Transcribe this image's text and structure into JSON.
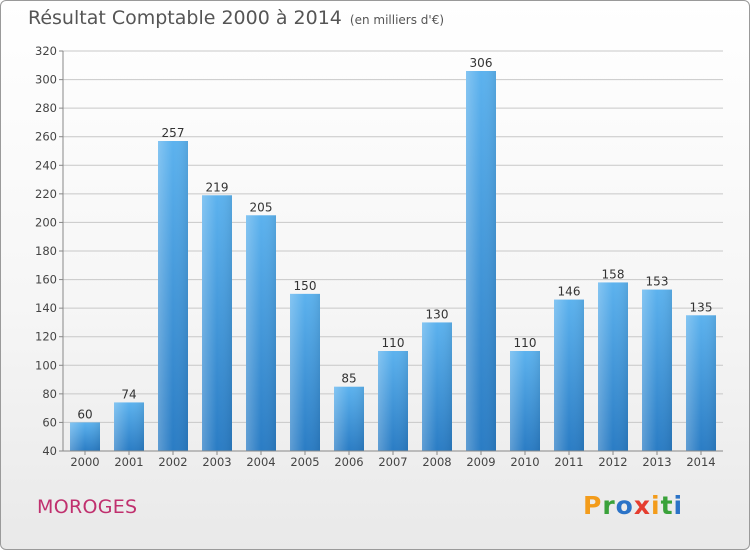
{
  "header": {
    "title": "Résultat Comptable 2000 à 2014",
    "unit": "(en milliers d'€)"
  },
  "footer": {
    "commune": "MOROGES"
  },
  "brand": {
    "name": "Proxiti",
    "letters": [
      {
        "ch": "P",
        "color": "#f39c1b"
      },
      {
        "ch": "r",
        "color": "#3aa23a"
      },
      {
        "ch": "o",
        "color": "#2b73c7"
      },
      {
        "ch": "x",
        "color": "#e53d2f"
      },
      {
        "ch": "i",
        "color": "#f39c1b"
      },
      {
        "ch": "t",
        "color": "#3aa23a"
      },
      {
        "ch": "i",
        "color": "#2b73c7"
      }
    ]
  },
  "chart_data": {
    "type": "bar",
    "title": "Résultat Comptable 2000 à 2014",
    "xlabel": "",
    "ylabel": "",
    "categories": [
      "2000",
      "2001",
      "2002",
      "2003",
      "2004",
      "2005",
      "2006",
      "2007",
      "2008",
      "2009",
      "2010",
      "2011",
      "2012",
      "2013",
      "2014"
    ],
    "values": [
      60,
      74,
      257,
      219,
      205,
      150,
      85,
      110,
      130,
      306,
      110,
      146,
      158,
      153,
      135
    ],
    "ylim": [
      40,
      320
    ],
    "yticks": [
      40,
      60,
      80,
      100,
      120,
      140,
      160,
      180,
      200,
      220,
      240,
      260,
      280,
      300,
      320
    ],
    "grid": true,
    "bar_color": "#3f9be0",
    "bar_color_dark": "#2a7cc4"
  }
}
